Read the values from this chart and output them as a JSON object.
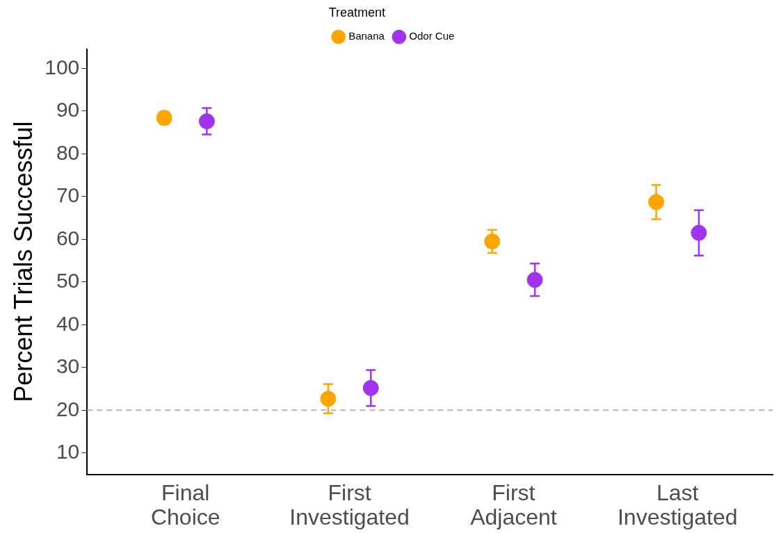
{
  "chart_data": {
    "type": "scatter",
    "ylabel": "Percent Trials Successful",
    "legend_title": "Treatment",
    "categories": [
      "Final Choice",
      "First Investigated",
      "First Adjacent",
      "Last Investigated"
    ],
    "series": [
      {
        "name": "Banana",
        "color": "#ffa500",
        "values": [
          88.4,
          22.7,
          59.5,
          68.7
        ],
        "errors": [
          1.5,
          3.4,
          2.7,
          4.0
        ]
      },
      {
        "name": "Odor Cue",
        "color": "#a033ee",
        "values": [
          87.6,
          25.2,
          50.5,
          61.5
        ],
        "errors": [
          3.1,
          4.2,
          3.8,
          5.3
        ]
      }
    ],
    "ylim": [
      5,
      104.5
    ],
    "yticks": [
      10,
      20,
      30,
      40,
      50,
      60,
      70,
      80,
      90,
      100
    ],
    "ref_lines": [
      {
        "axis": "y",
        "value": 20,
        "color": "#b3b3b3",
        "line_style": "dashed"
      }
    ],
    "grid": false,
    "legend": "top",
    "marker": "circle"
  }
}
